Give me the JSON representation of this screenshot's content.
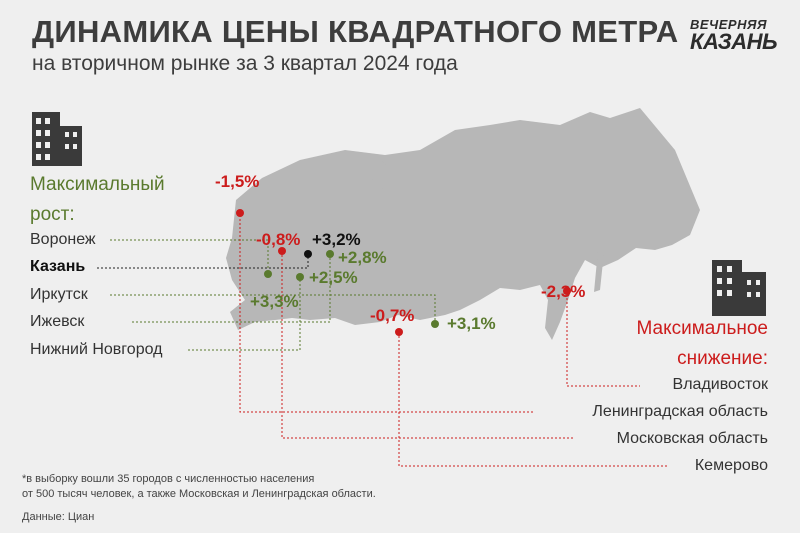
{
  "header": {
    "title": "ДИНАМИКА ЦЕНЫ КВАДРАТНОГО МЕТРА",
    "subtitle": "на вторичном рынке за 3 квартал 2024 года"
  },
  "logo": {
    "line1": "ВЕЧЕРНЯЯ",
    "line2": "КАЗАНЬ"
  },
  "growth": {
    "heading_line1": "Максимальный",
    "heading_line2": "рост:",
    "cities": [
      "Воронеж",
      "Казань",
      "Иркутск",
      "Ижевск",
      "Нижний Новгород"
    ]
  },
  "decline": {
    "heading_line1": "Максимальное",
    "heading_line2": "снижение:",
    "cities": [
      "Владивосток",
      "Ленинградская область",
      "Московская область",
      "Кемерово"
    ]
  },
  "values": {
    "leningrad": "-1,5%",
    "moscow": "-0,8%",
    "kazan": "+3,2%",
    "izhevsk": "+2,8%",
    "nizhny": "+2,5%",
    "voronezh": "+3,3%",
    "kemerovo": "-0,7%",
    "irkutsk": "+3,1%",
    "vladivostok": "-2,3%"
  },
  "colors": {
    "growth": "#5a7a2e",
    "decline": "#cc1c1c",
    "neutral": "#111111",
    "map": "#b7b7b7",
    "background": "#efefef"
  },
  "footnote": {
    "line1": "*в выборку вошли 35 городов с численностью населения",
    "line2": "от 500 тысяч человек, а также Московская и Ленинградская области."
  },
  "source": "Данные: Циан"
}
